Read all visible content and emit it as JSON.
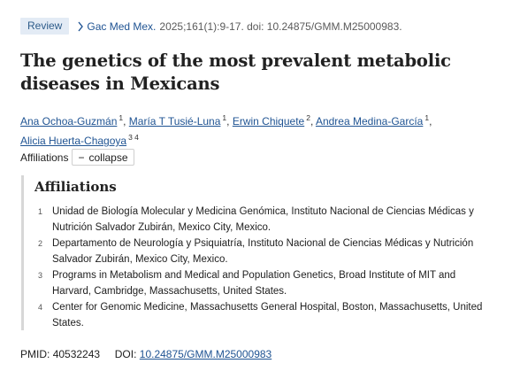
{
  "header": {
    "badge": "Review",
    "journal": "Gac Med Mex.",
    "citation": "2025;161(1):9-17. doi: 10.24875/GMM.M25000983."
  },
  "title": "The genetics of the most prevalent metabolic diseases in Mexicans",
  "authors": [
    {
      "name": "Ana Ochoa-Guzmán",
      "sup": "1"
    },
    {
      "name": "María T Tusié-Luna",
      "sup": "1"
    },
    {
      "name": "Erwin Chiquete",
      "sup": "2"
    },
    {
      "name": "Andrea Medina-García",
      "sup": "1"
    },
    {
      "name": "Alicia Huerta-Chagoya",
      "sup": "3 4"
    }
  ],
  "affiliations_toggle": {
    "label": "Affiliations",
    "button_symbol": "−",
    "button_label": "collapse"
  },
  "affiliations": {
    "heading": "Affiliations",
    "items": [
      {
        "num": "1",
        "text": "Unidad de Biología Molecular y Medicina Genómica, Instituto Nacional de Ciencias Médicas y Nutrición Salvador Zubirán, Mexico City, Mexico."
      },
      {
        "num": "2",
        "text": "Departamento de Neurología y Psiquiatría, Instituto Nacional de Ciencias Médicas y Nutrición Salvador Zubirán, Mexico City, Mexico."
      },
      {
        "num": "3",
        "text": "Programs in Metabolism and Medical and Population Genetics, Broad Institute of MIT and Harvard, Cambridge, Massachusetts, United States."
      },
      {
        "num": "4",
        "text": "Center for Genomic Medicine, Massachusetts General Hospital, Boston, Massachusetts, United States."
      }
    ]
  },
  "identifiers": {
    "pmid_label": "PMID:",
    "pmid": "40532243",
    "doi_label": "DOI:",
    "doi": "10.24875/GMM.M25000983"
  },
  "colors": {
    "link": "#205493",
    "badge_bg": "#e3ebf5",
    "badge_text": "#2e5c8a"
  }
}
